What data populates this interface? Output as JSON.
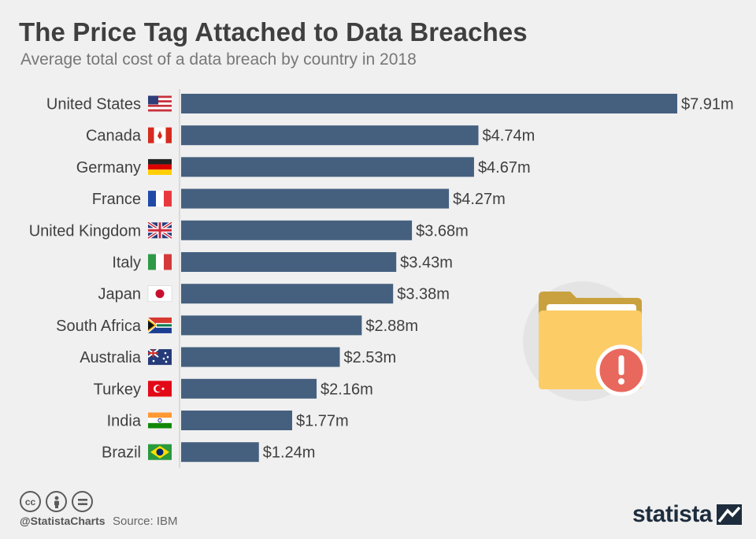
{
  "header": {
    "title": "The Price Tag Attached to Data Breaches",
    "subtitle": "Average total cost of a data breach by country in 2018"
  },
  "chart_data": {
    "type": "bar",
    "orientation": "horizontal",
    "categories": [
      "United States",
      "Canada",
      "Germany",
      "France",
      "United Kingdom",
      "Italy",
      "Japan",
      "South Africa",
      "Australia",
      "Turkey",
      "India",
      "Brazil"
    ],
    "values": [
      7.91,
      4.74,
      4.67,
      4.27,
      3.68,
      3.43,
      3.38,
      2.88,
      2.53,
      2.16,
      1.77,
      1.24
    ],
    "data_labels": [
      "$7.91m",
      "$4.74m",
      "$4.67m",
      "$4.27m",
      "$3.68m",
      "$3.43m",
      "$3.38m",
      "$2.88m",
      "$2.53m",
      "$2.16m",
      "$1.77m",
      "$1.24m"
    ],
    "flags": [
      "us",
      "ca",
      "de",
      "fr",
      "gb",
      "it",
      "jp",
      "za",
      "au",
      "tr",
      "in",
      "br"
    ],
    "bar_color": "#45607f",
    "xlim": [
      0,
      7.91
    ],
    "grid": false
  },
  "illustration": {
    "icon": "folder-alert-icon",
    "folder_color": "#fccc66",
    "alert_color": "#e8685d"
  },
  "footer": {
    "license_icons": [
      "cc-icon",
      "attribution-icon",
      "no-derivatives-icon"
    ],
    "handle": "@StatistaCharts",
    "source": "Source: IBM",
    "brand": "statista"
  }
}
